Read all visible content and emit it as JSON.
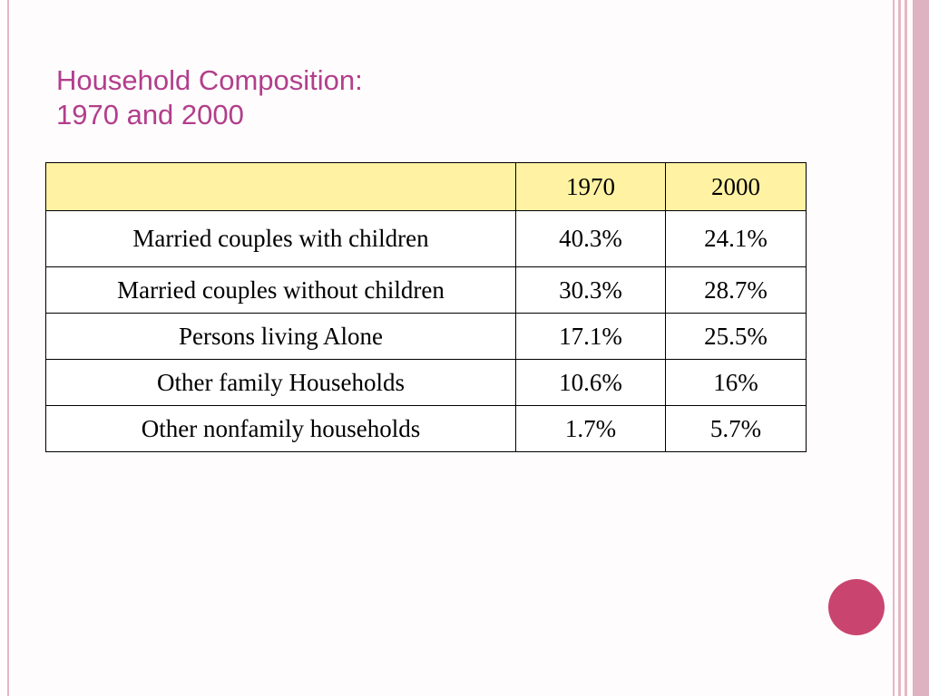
{
  "slide": {
    "title_line1": "Household Composition:",
    "title_line2": "1970 and 2000"
  },
  "table": {
    "header": [
      "",
      "1970",
      "2000"
    ],
    "rows": [
      {
        "label": "Married couples with children",
        "v1970": "40.3%",
        "v2000": "24.1%"
      },
      {
        "label": "Married couples without children",
        "v1970": "30.3%",
        "v2000": "28.7%"
      },
      {
        "label": "Persons living Alone",
        "v1970": "17.1%",
        "v2000": "25.5%"
      },
      {
        "label": "Other family Households",
        "v1970": "10.6%",
        "v2000": "16%"
      },
      {
        "label": "Other nonfamily households",
        "v1970": "1.7%",
        "v2000": "5.7%"
      }
    ]
  },
  "colors": {
    "title": "#b23e8b",
    "header_fill": "#fff2a3",
    "accent_dot": "#c9456f",
    "stripe": "#e6b7c4"
  }
}
